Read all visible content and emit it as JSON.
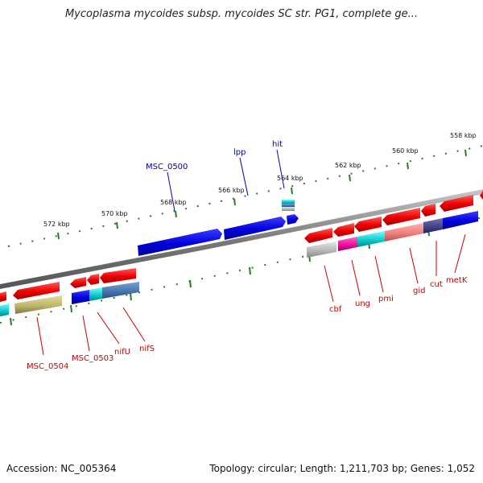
{
  "title": "Mycoplasma mycoides subsp. mycoides SC str. PG1, complete ge...",
  "accession": "Accession: NC_005364",
  "summary": "Topology: circular; Length: 1,211,703 bp; Genes: 1,052",
  "kbp_labels": [
    {
      "text": "572 kbp"
    },
    {
      "text": "570 kbp"
    },
    {
      "text": "568 kbp"
    },
    {
      "text": "566 kbp"
    },
    {
      "text": "564 kbp"
    },
    {
      "text": "562 kbp"
    },
    {
      "text": "560 kbp"
    },
    {
      "text": "558 kbp"
    }
  ],
  "gene_labels_top": [
    {
      "text": "MSC_0500"
    },
    {
      "text": "lpp"
    },
    {
      "text": "hit"
    }
  ],
  "gene_labels_bottom": [
    {
      "text": "MSC_0504"
    },
    {
      "text": "MSC_0503"
    },
    {
      "text": "nifU"
    },
    {
      "text": "nifS"
    },
    {
      "text": "cbf"
    },
    {
      "text": "ung"
    },
    {
      "text": "pmi"
    },
    {
      "text": "gid"
    },
    {
      "text": "cut"
    },
    {
      "text": "metK"
    }
  ],
  "colors": {
    "backbone": "#8a8a8a",
    "forward_gene": "#0000dd",
    "reverse_gene": "#ee0000",
    "tick": "#2a7a2a",
    "top_label": "#0000aa",
    "bottom_label": "#cc0000"
  }
}
